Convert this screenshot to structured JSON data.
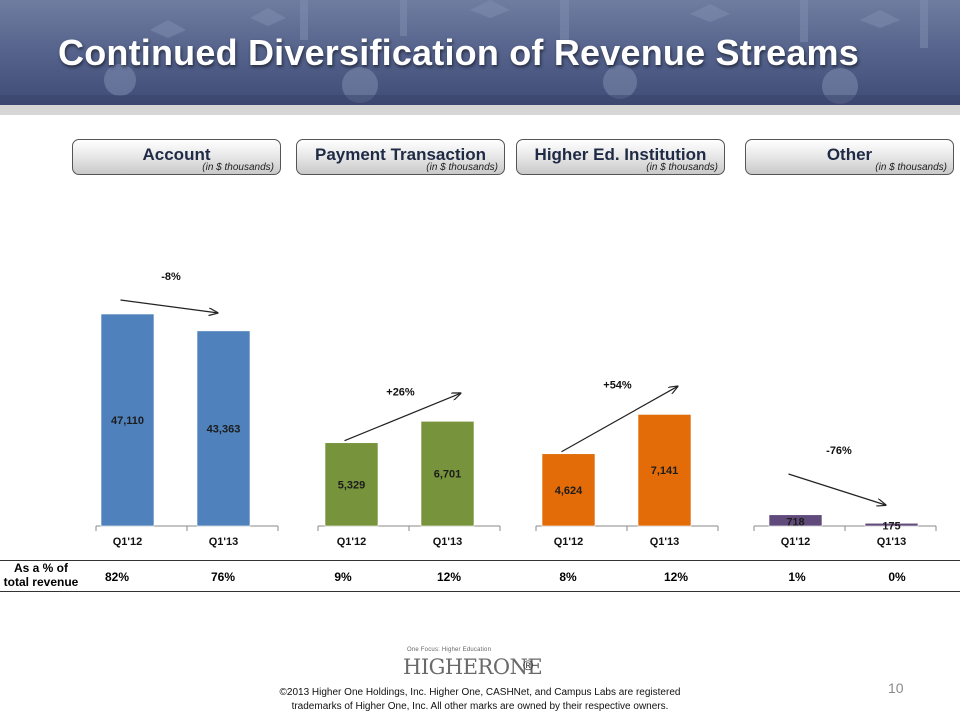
{
  "header": {
    "title": "Continued Diversification of Revenue Streams"
  },
  "segments": [
    {
      "name": "Account",
      "unit": "(in $ thousands)"
    },
    {
      "name": "Payment Transaction",
      "unit": "(in $ thousands)"
    },
    {
      "name": "Higher Ed. Institution",
      "unit": "(in $ thousands)"
    },
    {
      "name": "Other",
      "unit": "(in $ thousands)"
    }
  ],
  "chart_data": [
    {
      "type": "bar",
      "title": "Account",
      "categories": [
        "Q1'12",
        "Q1'13"
      ],
      "values": [
        47110,
        43363
      ],
      "labels": [
        "47,110",
        "43,363"
      ],
      "change": "-8%",
      "color": "#4f81bd",
      "ylim": [
        0,
        50000
      ]
    },
    {
      "type": "bar",
      "title": "Payment Transaction",
      "categories": [
        "Q1'12",
        "Q1'13"
      ],
      "values": [
        5329,
        6701
      ],
      "labels": [
        "5,329",
        "6,701"
      ],
      "change": "+26%",
      "color": "#77933c",
      "ylim": [
        0,
        8000
      ]
    },
    {
      "type": "bar",
      "title": "Higher Ed. Institution",
      "categories": [
        "Q1'12",
        "Q1'13"
      ],
      "values": [
        4624,
        7141
      ],
      "labels": [
        "4,624",
        "7,141"
      ],
      "change": "+54%",
      "color": "#e36c09",
      "ylim": [
        0,
        8000
      ]
    },
    {
      "type": "bar",
      "title": "Other",
      "categories": [
        "Q1'12",
        "Q1'13"
      ],
      "values": [
        718,
        175
      ],
      "labels": [
        "718",
        "175"
      ],
      "change": "-76%",
      "color": "#604a7b",
      "ylim": [
        0,
        8000
      ]
    }
  ],
  "revenue_share": {
    "label": "As a % of total revenue",
    "values": [
      "82%",
      "76%",
      "9%",
      "12%",
      "8%",
      "12%",
      "1%",
      "0%"
    ]
  },
  "logo": {
    "tagline": "One Focus: Higher Education",
    "text": "HIGHERONE",
    "mark": "®"
  },
  "page_number": "10",
  "footer": {
    "line1": "©2013 Higher One Holdings, Inc.  Higher One, CASHNet, and Campus Labs are registered",
    "line2": "trademarks of Higher One, Inc.  All other marks are owned by their respective owners."
  }
}
